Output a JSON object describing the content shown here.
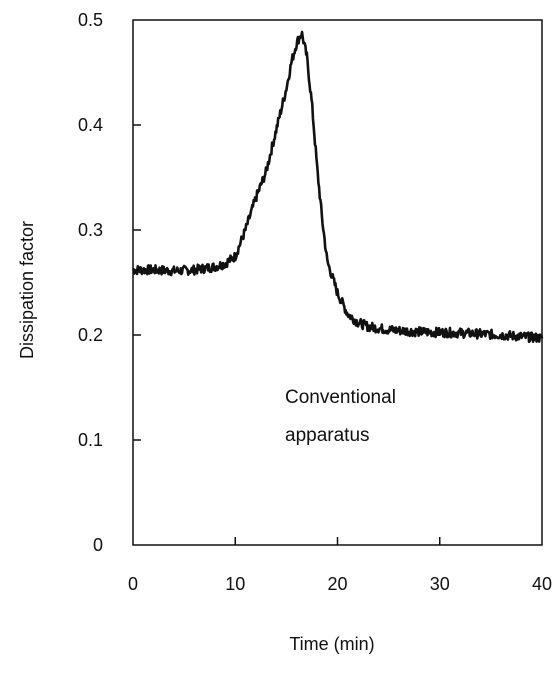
{
  "chart_data": {
    "type": "line",
    "title": "",
    "xlabel": "Time (min)",
    "ylabel": "Dissipation factor",
    "xlim": [
      0,
      40
    ],
    "ylim": [
      0,
      0.5
    ],
    "xticks": [
      "0",
      "10",
      "20",
      "30",
      "40"
    ],
    "yticks": [
      "0",
      "0.1",
      "0.2",
      "0.3",
      "0.4",
      "0.5"
    ],
    "grid": false,
    "legend": "none",
    "annotation": [
      "Conventional",
      "apparatus"
    ],
    "line_color": "#111111",
    "series": [
      {
        "x": [
          0,
          2,
          4,
          6,
          8,
          9,
          10,
          11,
          12,
          13,
          14,
          15,
          15.5,
          16,
          16.5,
          17,
          17.5,
          18,
          18.5,
          19,
          20,
          21,
          22,
          23,
          25,
          28,
          32,
          36,
          40
        ],
        "y": [
          0.262,
          0.262,
          0.261,
          0.262,
          0.265,
          0.268,
          0.275,
          0.3,
          0.33,
          0.355,
          0.395,
          0.435,
          0.46,
          0.478,
          0.488,
          0.465,
          0.42,
          0.36,
          0.31,
          0.27,
          0.24,
          0.22,
          0.212,
          0.208,
          0.205,
          0.203,
          0.202,
          0.2,
          0.197
        ]
      }
    ]
  }
}
